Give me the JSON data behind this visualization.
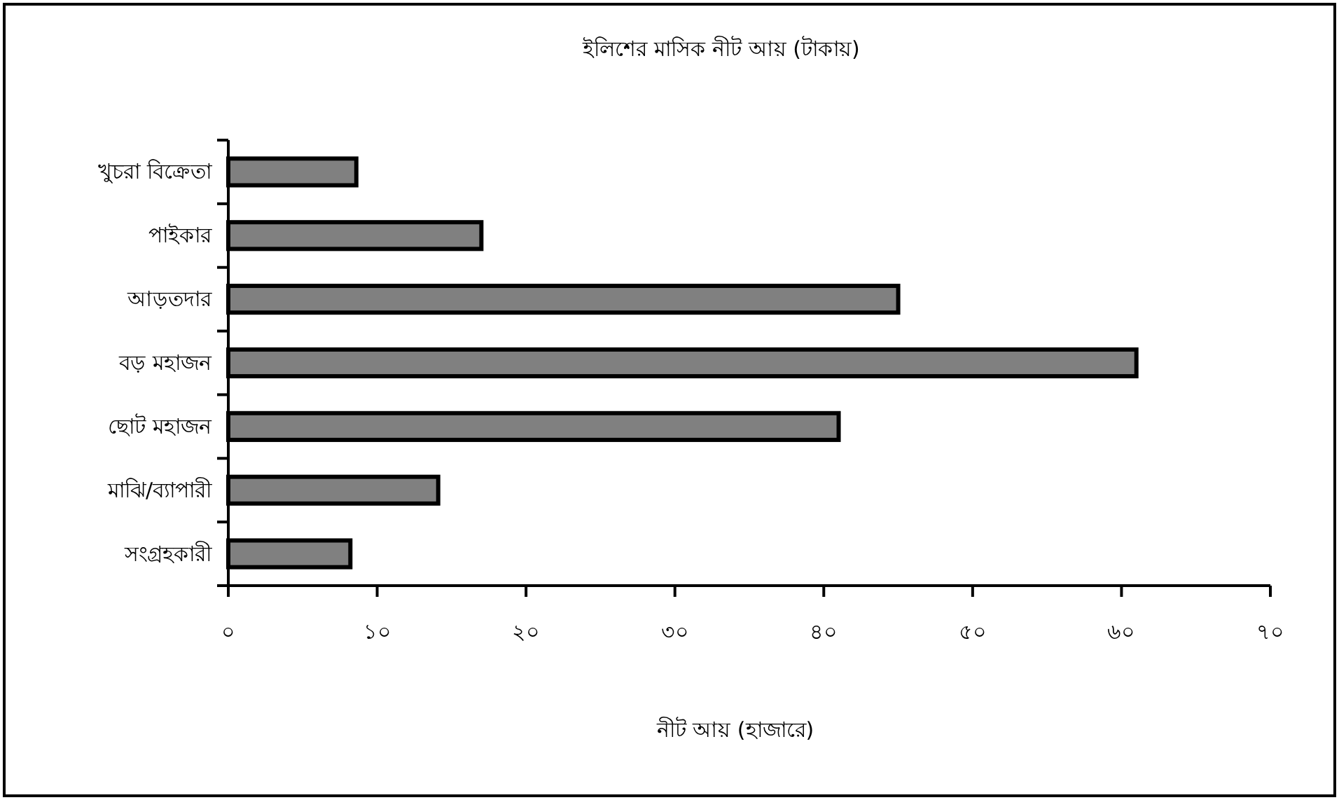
{
  "chart_data": {
    "type": "bar",
    "orientation": "horizontal",
    "title": "ইলিশের মাসিক নীট আয় (টাকায়)",
    "xlabel": "নীট আয় (হাজারে)",
    "categories": [
      "খুচরা বিক্রেতা",
      "পাইকার",
      "আড়তদার",
      "বড় মহাজন",
      "ছোট মহাজন",
      "মাঝি/ব্যাপারী",
      "সংগ্রহকারী"
    ],
    "values": [
      8.6,
      17,
      45,
      61,
      41,
      14.1,
      8.2
    ],
    "color": "#808080",
    "xlim": [
      0,
      70
    ],
    "xticks": [
      {
        "value": 0,
        "label": "০"
      },
      {
        "value": 10,
        "label": "১০"
      },
      {
        "value": 20,
        "label": "২০"
      },
      {
        "value": 30,
        "label": "৩০"
      },
      {
        "value": 40,
        "label": "৪০"
      },
      {
        "value": 50,
        "label": "৫০"
      },
      {
        "value": 60,
        "label": "৬০"
      },
      {
        "value": 70,
        "label": "৭০"
      }
    ],
    "grid": false
  }
}
